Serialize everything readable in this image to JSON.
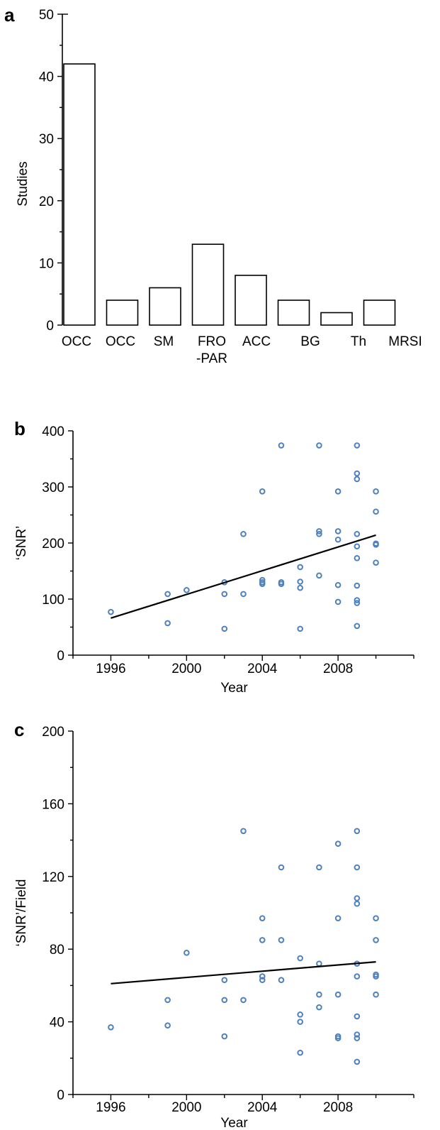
{
  "chart_data": [
    {
      "panel": "a",
      "type": "bar",
      "ylabel": "Studies",
      "ylim": [
        0,
        50
      ],
      "yticks": [
        "0",
        "10",
        "20",
        "30",
        "40",
        "50"
      ],
      "categories": [
        "OCC",
        "OCC",
        "SM",
        "FRO\n-PAR",
        "ACC",
        "BG",
        "Th",
        "MRSI"
      ],
      "values": [
        42,
        4,
        6,
        13,
        8,
        4,
        2,
        4
      ]
    },
    {
      "panel": "b",
      "type": "scatter",
      "xlabel": "Year",
      "ylabel": "‘SNR’",
      "xlim": [
        1994,
        2012
      ],
      "ylim": [
        0,
        400
      ],
      "xticks": [
        "1996",
        "2000",
        "2004",
        "2008"
      ],
      "yticks": [
        "0",
        "100",
        "200",
        "300",
        "400"
      ],
      "points": [
        [
          1996,
          77
        ],
        [
          1999,
          109
        ],
        [
          1999,
          57
        ],
        [
          2000,
          116
        ],
        [
          2002,
          130
        ],
        [
          2002,
          109
        ],
        [
          2002,
          47
        ],
        [
          2003,
          216
        ],
        [
          2003,
          109
        ],
        [
          2004,
          292
        ],
        [
          2004,
          134
        ],
        [
          2004,
          130
        ],
        [
          2004,
          127
        ],
        [
          2005,
          374
        ],
        [
          2005,
          130
        ],
        [
          2005,
          127
        ],
        [
          2006,
          157
        ],
        [
          2006,
          131
        ],
        [
          2006,
          120
        ],
        [
          2006,
          47
        ],
        [
          2007,
          374
        ],
        [
          2007,
          221
        ],
        [
          2007,
          216
        ],
        [
          2007,
          142
        ],
        [
          2008,
          292
        ],
        [
          2008,
          221
        ],
        [
          2008,
          206
        ],
        [
          2008,
          125
        ],
        [
          2008,
          95
        ],
        [
          2009,
          374
        ],
        [
          2009,
          324
        ],
        [
          2009,
          314
        ],
        [
          2009,
          216
        ],
        [
          2009,
          194
        ],
        [
          2009,
          173
        ],
        [
          2009,
          124
        ],
        [
          2009,
          98
        ],
        [
          2009,
          93
        ],
        [
          2009,
          52
        ],
        [
          2010,
          292
        ],
        [
          2010,
          256
        ],
        [
          2010,
          199
        ],
        [
          2010,
          197
        ],
        [
          2010,
          165
        ]
      ],
      "trendline": [
        [
          1996,
          66
        ],
        [
          2010,
          214
        ]
      ]
    },
    {
      "panel": "c",
      "type": "scatter",
      "xlabel": "Year",
      "ylabel": "‘SNR’/Field",
      "xlim": [
        1994,
        2012
      ],
      "ylim": [
        0,
        200
      ],
      "xticks": [
        "1996",
        "2000",
        "2004",
        "2008"
      ],
      "yticks": [
        "0",
        "40",
        "80",
        "120",
        "160",
        "200"
      ],
      "points": [
        [
          1996,
          37
        ],
        [
          1999,
          52
        ],
        [
          1999,
          38
        ],
        [
          2000,
          78
        ],
        [
          2002,
          63
        ],
        [
          2002,
          52
        ],
        [
          2002,
          32
        ],
        [
          2003,
          145
        ],
        [
          2003,
          52
        ],
        [
          2004,
          97
        ],
        [
          2004,
          85
        ],
        [
          2004,
          65
        ],
        [
          2004,
          63
        ],
        [
          2005,
          125
        ],
        [
          2005,
          85
        ],
        [
          2005,
          63
        ],
        [
          2006,
          75
        ],
        [
          2006,
          44
        ],
        [
          2006,
          40
        ],
        [
          2006,
          23
        ],
        [
          2007,
          125
        ],
        [
          2007,
          72
        ],
        [
          2007,
          55
        ],
        [
          2007,
          48
        ],
        [
          2008,
          138
        ],
        [
          2008,
          97
        ],
        [
          2008,
          55
        ],
        [
          2008,
          32
        ],
        [
          2008,
          31
        ],
        [
          2009,
          145
        ],
        [
          2009,
          125
        ],
        [
          2009,
          108
        ],
        [
          2009,
          105
        ],
        [
          2009,
          72
        ],
        [
          2009,
          65
        ],
        [
          2009,
          43
        ],
        [
          2009,
          33
        ],
        [
          2009,
          31
        ],
        [
          2009,
          18
        ],
        [
          2010,
          97
        ],
        [
          2010,
          85
        ],
        [
          2010,
          66
        ],
        [
          2010,
          65
        ],
        [
          2010,
          55
        ]
      ],
      "trendline": [
        [
          1996,
          61
        ],
        [
          2010,
          73
        ]
      ]
    }
  ]
}
